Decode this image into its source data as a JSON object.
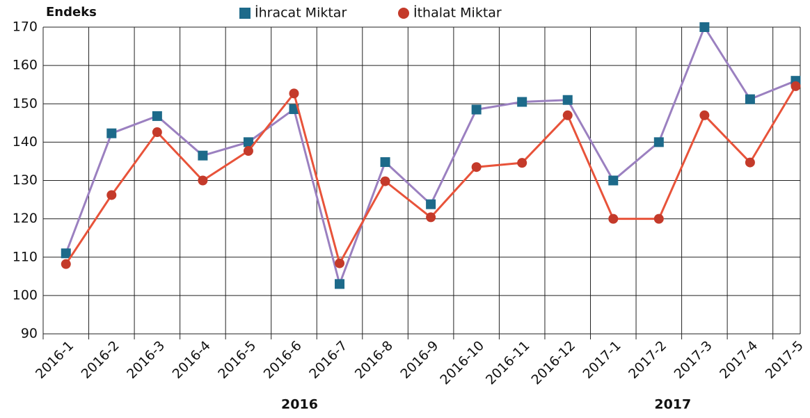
{
  "chart_data": {
    "type": "line",
    "y_label": "Endeks",
    "categories": [
      "2016-1",
      "2016-2",
      "2016-3",
      "2016-4",
      "2016-5",
      "2016-6",
      "2016-7",
      "2016-8",
      "2016-9",
      "2016-10",
      "2016-11",
      "2016-12",
      "2017-1",
      "2017-2",
      "2017-3",
      "2017-4",
      "2017-5"
    ],
    "series": [
      {
        "name": "İhracat Miktar",
        "color": "#9b80c0",
        "marker_color": "#1d6a8a",
        "marker": "square",
        "values": [
          111,
          142.3,
          146.8,
          136.5,
          140,
          148.6,
          103,
          134.8,
          123.8,
          148.5,
          150.5,
          151,
          130,
          140,
          170,
          151.2,
          156
        ]
      },
      {
        "name": "İthalat Miktar",
        "color": "#e8533a",
        "marker_color": "#c43a2a",
        "marker": "circle",
        "values": [
          108.2,
          126.2,
          142.6,
          130,
          137.7,
          152.7,
          108.4,
          129.8,
          120.4,
          133.5,
          134.6,
          147,
          120,
          120,
          147,
          134.7,
          154.6
        ]
      }
    ],
    "annotations": [
      "2016",
      "2017"
    ],
    "ylim": [
      90,
      170
    ],
    "yticks": [
      90,
      100,
      110,
      120,
      130,
      140,
      150,
      160,
      170
    ],
    "grid": true,
    "legend": "top"
  }
}
